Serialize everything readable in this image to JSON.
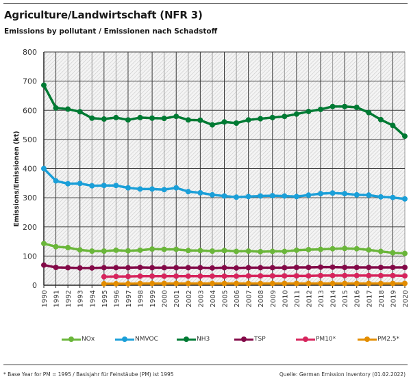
{
  "header": {
    "title": "Agriculture/Landwirtschaft (NFR 3)",
    "subtitle": "Emissions by pollutant / Emissionen nach Schadstoff"
  },
  "footer": {
    "footnote": "* Base Year for PM = 1995 / Basisjahr für Feinstäube (PM) ist 1995",
    "source": "Quelle: German Emission Inventory (01.02.2022)"
  },
  "chart_data": {
    "type": "line",
    "title": "Agriculture/Landwirtschaft (NFR 3)",
    "subtitle": "Emissions by pollutant / Emissionen nach Schadstoff",
    "xlabel": "",
    "ylabel": "Emissions/Emissionen (kt)",
    "ylim": [
      0,
      800
    ],
    "yticks": [
      0,
      100,
      200,
      300,
      400,
      500,
      600,
      700,
      800
    ],
    "grid": true,
    "legend_position": "bottom",
    "x": [
      1990,
      1991,
      1992,
      1993,
      1994,
      1995,
      1996,
      1997,
      1998,
      1999,
      2000,
      2001,
      2002,
      2003,
      2004,
      2005,
      2006,
      2007,
      2008,
      2009,
      2010,
      2011,
      2012,
      2013,
      2014,
      2015,
      2016,
      2017,
      2018,
      2019,
      2020
    ],
    "series": [
      {
        "name": "NOx",
        "color": "#6ab63a",
        "values": [
          143,
          132,
          129,
          121,
          117,
          117,
          120,
          118,
          120,
          124,
          123,
          123,
          119,
          119,
          117,
          119,
          116,
          117,
          115,
          116,
          116,
          120,
          122,
          123,
          125,
          126,
          125,
          121,
          116,
          111,
          109
        ]
      },
      {
        "name": "NMVOC",
        "color": "#1a9fd8",
        "values": [
          400,
          358,
          348,
          349,
          341,
          342,
          342,
          334,
          330,
          330,
          328,
          334,
          321,
          317,
          310,
          306,
          302,
          304,
          306,
          307,
          306,
          304,
          309,
          314,
          316,
          314,
          310,
          309,
          303,
          301,
          296
        ]
      },
      {
        "name": "NH3",
        "color": "#007a33",
        "values": [
          686,
          608,
          604,
          595,
          573,
          570,
          575,
          567,
          575,
          573,
          572,
          579,
          567,
          566,
          550,
          560,
          556,
          567,
          571,
          575,
          579,
          587,
          596,
          603,
          613,
          613,
          610,
          592,
          568,
          548,
          511
        ]
      },
      {
        "name": "TSP",
        "color": "#830a48",
        "values": [
          69,
          61,
          60,
          59,
          59,
          60,
          60,
          60,
          61,
          60,
          60,
          60,
          60,
          60,
          59,
          60,
          59,
          60,
          60,
          60,
          60,
          61,
          61,
          62,
          62,
          61,
          61,
          61,
          61,
          61,
          61
        ]
      },
      {
        "name": "PM10*",
        "color": "#d6245c",
        "values": [
          null,
          null,
          null,
          null,
          null,
          29,
          30,
          30,
          31,
          31,
          31,
          31,
          31,
          31,
          31,
          31,
          31,
          32,
          32,
          32,
          32,
          32,
          32,
          33,
          33,
          33,
          33,
          33,
          33,
          33,
          32
        ]
      },
      {
        "name": "PM2.5*",
        "color": "#e38d00",
        "values": [
          null,
          null,
          null,
          null,
          null,
          5,
          5,
          5,
          6,
          6,
          6,
          6,
          6,
          6,
          6,
          6,
          6,
          6,
          6,
          6,
          6,
          6,
          6,
          6,
          6,
          6,
          6,
          6,
          6,
          6,
          6
        ]
      }
    ]
  }
}
